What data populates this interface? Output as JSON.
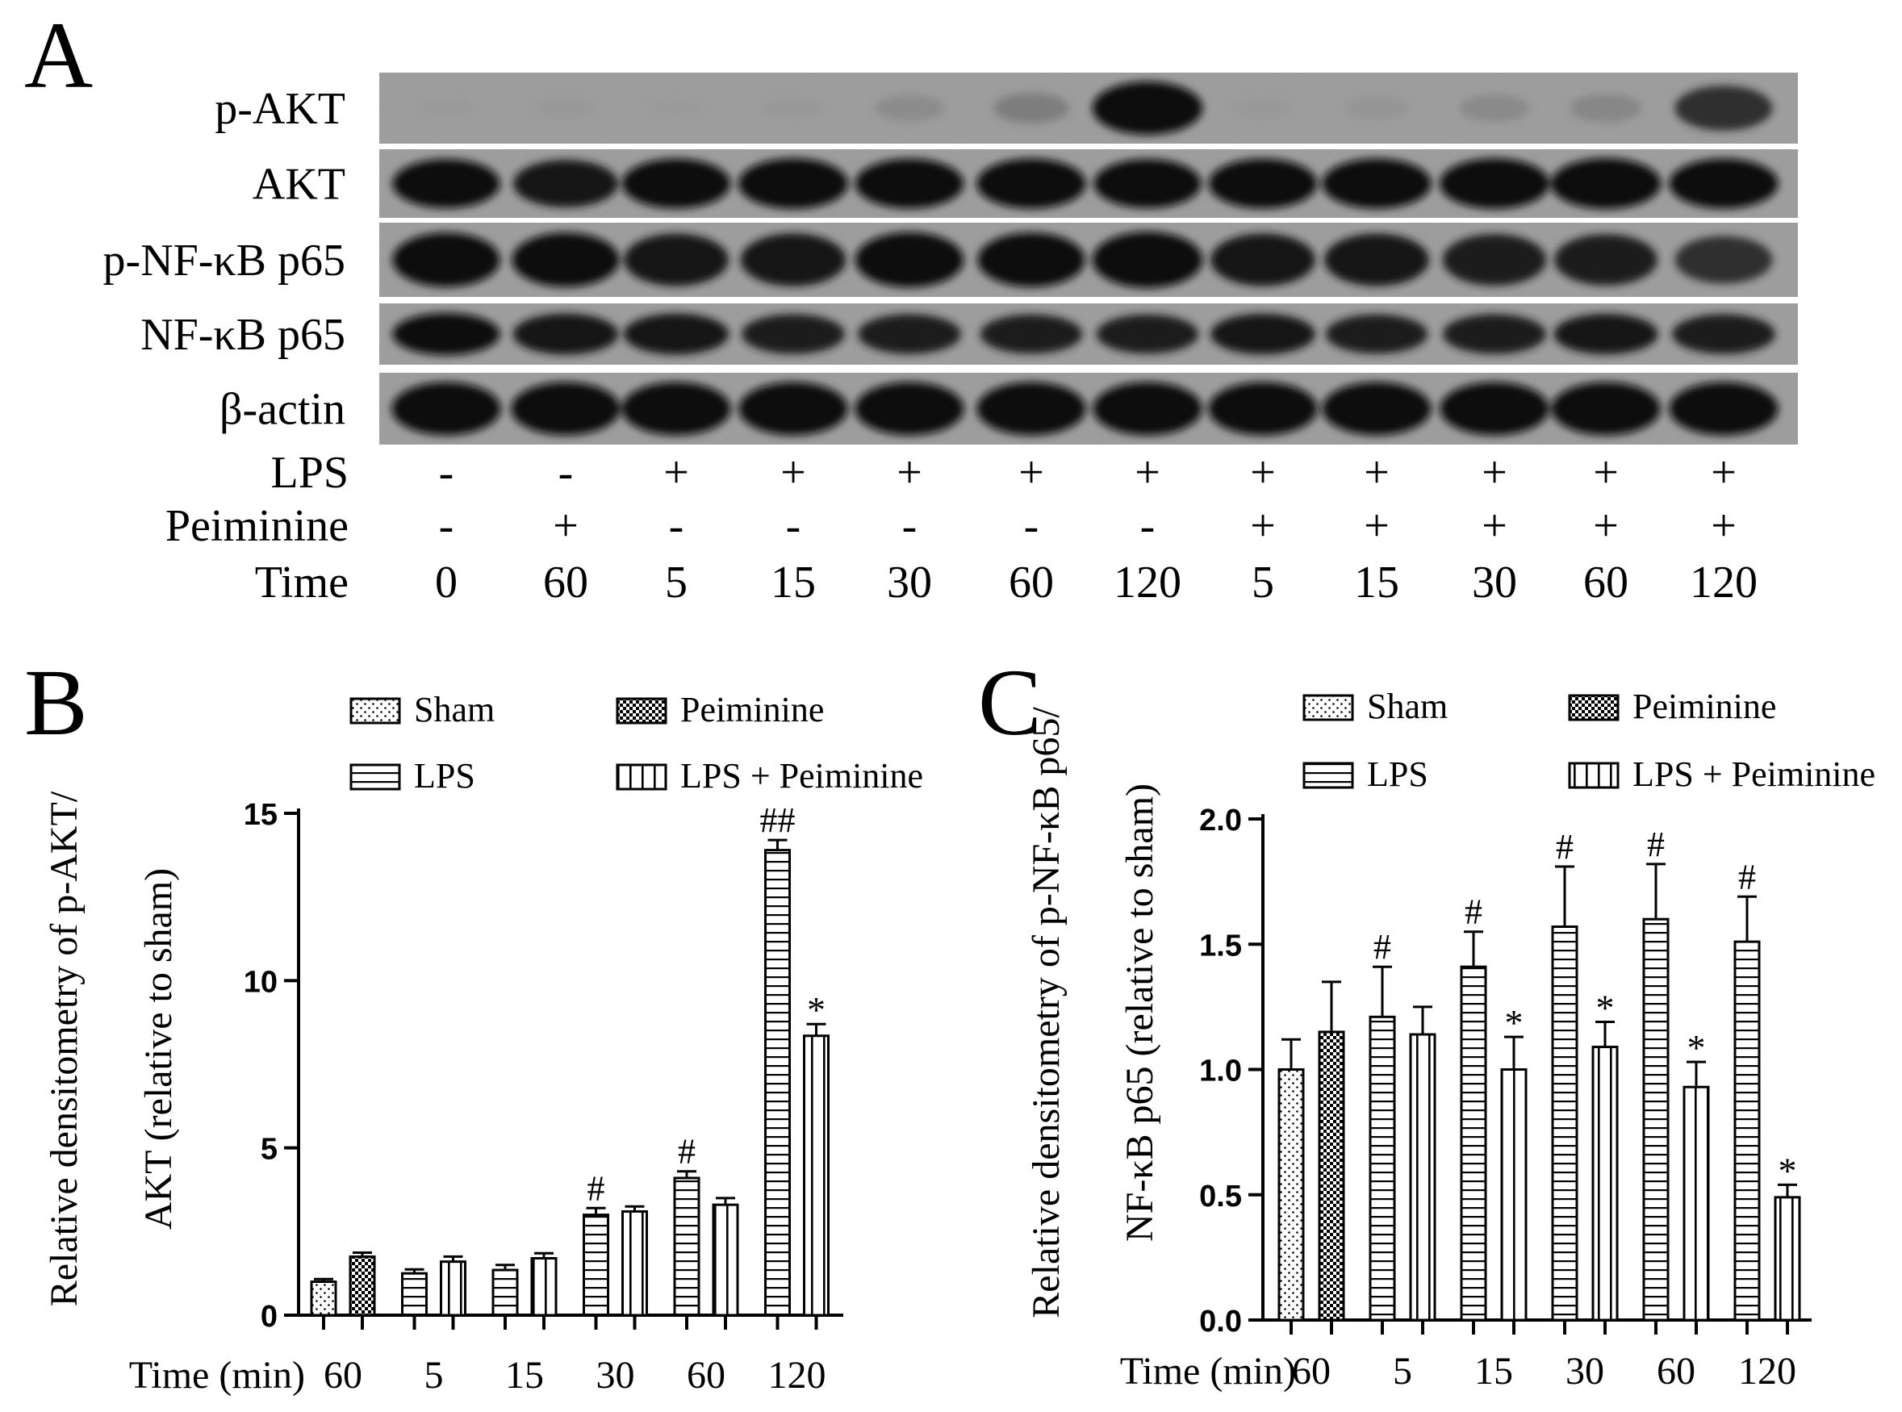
{
  "panel_a": {
    "letter": "A",
    "blot_rows": [
      {
        "label": "p-AKT",
        "intensities": [
          0.02,
          0.05,
          0.03,
          0.06,
          0.2,
          0.32,
          0.95,
          0.05,
          0.1,
          0.22,
          0.25,
          0.72
        ]
      },
      {
        "label": "AKT",
        "intensities": [
          0.9,
          0.85,
          0.92,
          0.94,
          0.92,
          0.93,
          0.9,
          0.92,
          0.93,
          0.94,
          0.95,
          0.93
        ]
      },
      {
        "label": "p-NF-κB p65",
        "intensities": [
          0.9,
          0.9,
          0.85,
          0.86,
          0.92,
          0.9,
          0.95,
          0.85,
          0.85,
          0.83,
          0.82,
          0.72
        ]
      },
      {
        "label": "NF-κB p65",
        "intensities": [
          0.9,
          0.86,
          0.86,
          0.82,
          0.82,
          0.8,
          0.8,
          0.85,
          0.8,
          0.82,
          0.84,
          0.82
        ]
      },
      {
        "label": "β-actin",
        "intensities": [
          0.93,
          0.93,
          0.93,
          0.93,
          0.93,
          0.93,
          0.93,
          0.93,
          0.93,
          0.93,
          0.93,
          0.93
        ]
      }
    ],
    "conditions": [
      {
        "label": "LPS",
        "values": [
          "-",
          "-",
          "+",
          "+",
          "+",
          "+",
          "+",
          "+",
          "+",
          "+",
          "+",
          "+"
        ]
      },
      {
        "label": "Peiminine",
        "values": [
          "-",
          "+",
          "-",
          "-",
          "-",
          "-",
          "-",
          "+",
          "+",
          "+",
          "+",
          "+"
        ]
      },
      {
        "label": "Time",
        "values": [
          "0",
          "60",
          "5",
          "15",
          "30",
          "60",
          "120",
          "5",
          "15",
          "30",
          "60",
          "120"
        ]
      }
    ]
  },
  "chart_data": [
    {
      "panel": "B",
      "type": "bar",
      "ylabel_line1": "Relative densitometry of p-AKT/",
      "ylabel_line2": "AKT (relative to sham)",
      "xlabel": "Time (min)",
      "ylim": [
        0,
        15
      ],
      "yticks": [
        "0",
        "5",
        "10",
        "15"
      ],
      "categories": [
        "60",
        "5",
        "15",
        "30",
        "60",
        "120"
      ],
      "legend": [
        "Sham",
        "Peiminine",
        "LPS",
        "LPS + Peiminine"
      ],
      "bars": [
        {
          "series": "Sham",
          "group": 0,
          "value": 1.0,
          "error": 0.08,
          "annotation": ""
        },
        {
          "series": "Peiminine",
          "group": 0,
          "value": 1.75,
          "error": 0.12,
          "annotation": ""
        },
        {
          "series": "LPS",
          "group": 1,
          "value": 1.25,
          "error": 0.12,
          "annotation": ""
        },
        {
          "series": "LPS + Peiminine",
          "group": 1,
          "value": 1.6,
          "error": 0.15,
          "annotation": ""
        },
        {
          "series": "LPS",
          "group": 2,
          "value": 1.35,
          "error": 0.15,
          "annotation": ""
        },
        {
          "series": "LPS + Peiminine",
          "group": 2,
          "value": 1.7,
          "error": 0.15,
          "annotation": ""
        },
        {
          "series": "LPS",
          "group": 3,
          "value": 3.0,
          "error": 0.2,
          "annotation": "#"
        },
        {
          "series": "LPS + Peiminine",
          "group": 3,
          "value": 3.1,
          "error": 0.15,
          "annotation": ""
        },
        {
          "series": "LPS",
          "group": 4,
          "value": 4.1,
          "error": 0.2,
          "annotation": "#"
        },
        {
          "series": "LPS + Peiminine",
          "group": 4,
          "value": 3.3,
          "error": 0.2,
          "annotation": ""
        },
        {
          "series": "LPS",
          "group": 5,
          "value": 13.9,
          "error": 0.3,
          "annotation": "##"
        },
        {
          "series": "LPS + Peiminine",
          "group": 5,
          "value": 8.35,
          "error": 0.35,
          "annotation": "*"
        }
      ]
    },
    {
      "panel": "C",
      "type": "bar",
      "ylabel_line1": "Relative densitometry of p-NF-κB p65/",
      "ylabel_line2": "NF-κB p65 (relative to sham)",
      "xlabel": "Time (min)",
      "ylim": [
        0,
        2.0
      ],
      "yticks": [
        "0.0",
        "0.5",
        "1.0",
        "1.5",
        "2.0"
      ],
      "categories": [
        "60",
        "5",
        "15",
        "30",
        "60",
        "120"
      ],
      "legend": [
        "Sham",
        "Peiminine",
        "LPS",
        "LPS + Peiminine"
      ],
      "bars": [
        {
          "series": "Sham",
          "group": 0,
          "value": 1.0,
          "error": 0.12,
          "annotation": ""
        },
        {
          "series": "Peiminine",
          "group": 0,
          "value": 1.15,
          "error": 0.2,
          "annotation": ""
        },
        {
          "series": "LPS",
          "group": 1,
          "value": 1.21,
          "error": 0.2,
          "annotation": "#"
        },
        {
          "series": "LPS + Peiminine",
          "group": 1,
          "value": 1.14,
          "error": 0.11,
          "annotation": ""
        },
        {
          "series": "LPS",
          "group": 2,
          "value": 1.41,
          "error": 0.14,
          "annotation": "#"
        },
        {
          "series": "LPS + Peiminine",
          "group": 2,
          "value": 1.0,
          "error": 0.13,
          "annotation": "*"
        },
        {
          "series": "LPS",
          "group": 3,
          "value": 1.57,
          "error": 0.24,
          "annotation": "#"
        },
        {
          "series": "LPS + Peiminine",
          "group": 3,
          "value": 1.09,
          "error": 0.1,
          "annotation": "*"
        },
        {
          "series": "LPS",
          "group": 4,
          "value": 1.6,
          "error": 0.22,
          "annotation": "#"
        },
        {
          "series": "LPS + Peiminine",
          "group": 4,
          "value": 0.93,
          "error": 0.1,
          "annotation": "*"
        },
        {
          "series": "LPS",
          "group": 5,
          "value": 1.51,
          "error": 0.18,
          "annotation": "#"
        },
        {
          "series": "LPS + Peiminine",
          "group": 5,
          "value": 0.49,
          "error": 0.05,
          "annotation": "*"
        }
      ]
    }
  ]
}
